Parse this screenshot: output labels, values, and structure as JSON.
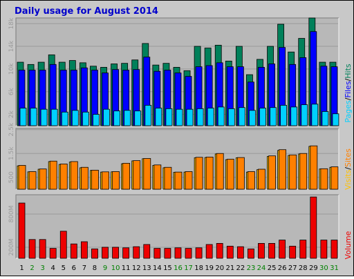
{
  "title": "Daily usage for August 2014",
  "colors": {
    "frame_bg": "#c8c8c8",
    "panel_bg": "#b8b8b8",
    "grid": "#9a9a9a",
    "title": "#0000cc",
    "hits": "#00805a",
    "files": "#0000ff",
    "pages": "#00d0ff",
    "visits": "#ffc000",
    "sites": "#ff8000",
    "volume": "#ee0000",
    "weekday_label": "#000000",
    "weekend_label": "#008000"
  },
  "legends": {
    "top": [
      "Pages",
      "Files",
      "Hits"
    ],
    "mid": [
      "Visits",
      "Sites"
    ],
    "bot": [
      "Volume"
    ]
  },
  "chart_data": [
    {
      "type": "bar",
      "panel": "hits-files-pages",
      "categories": [
        "1",
        "2",
        "3",
        "4",
        "5",
        "6",
        "7",
        "8",
        "9",
        "10",
        "11",
        "12",
        "13",
        "14",
        "15",
        "16",
        "17",
        "18",
        "19",
        "20",
        "21",
        "22",
        "23",
        "24",
        "25",
        "26",
        "27",
        "28",
        "29",
        "30",
        "31"
      ],
      "weekend_days": [
        2,
        3,
        9,
        10,
        16,
        17,
        23,
        24,
        30,
        31
      ],
      "ylim": [
        0,
        19000
      ],
      "yticks": [
        2000,
        6000,
        10000,
        14000,
        18000
      ],
      "ytick_labels": [
        "2k",
        "6k",
        "10k",
        "14k",
        "18k"
      ],
      "series": [
        {
          "name": "Hits",
          "values": [
            11200,
            10800,
            11200,
            12500,
            11200,
            11500,
            11100,
            10500,
            10300,
            10900,
            11000,
            11600,
            14500,
            10700,
            11000,
            10300,
            9700,
            14000,
            13700,
            14200,
            11400,
            14000,
            9000,
            11700,
            14000,
            17900,
            13000,
            15400,
            19000,
            11200,
            11200
          ]
        },
        {
          "name": "Files",
          "values": [
            9800,
            9800,
            9800,
            10800,
            9800,
            9800,
            10200,
            9800,
            9300,
            9900,
            9800,
            9900,
            12100,
            9600,
            9800,
            9300,
            8700,
            10400,
            10600,
            11100,
            10400,
            10400,
            7700,
            10300,
            10900,
            13800,
            10800,
            12000,
            16600,
            10500,
            10400
          ]
        },
        {
          "name": "Pages",
          "values": [
            3100,
            3100,
            2900,
            2900,
            2400,
            2700,
            2400,
            2000,
            2900,
            2600,
            2700,
            2600,
            3600,
            3100,
            3000,
            2900,
            2900,
            3000,
            3100,
            3300,
            3000,
            3200,
            2700,
            3100,
            3200,
            3600,
            3300,
            3700,
            3800,
            2500,
            2100
          ]
        }
      ]
    },
    {
      "type": "bar",
      "panel": "visits-sites",
      "categories": [
        "1",
        "2",
        "3",
        "4",
        "5",
        "6",
        "7",
        "8",
        "9",
        "10",
        "11",
        "12",
        "13",
        "14",
        "15",
        "16",
        "17",
        "18",
        "19",
        "20",
        "21",
        "22",
        "23",
        "24",
        "25",
        "26",
        "27",
        "28",
        "29",
        "30",
        "31"
      ],
      "ylim": [
        0,
        2550
      ],
      "yticks": [
        500,
        1500,
        2500
      ],
      "ytick_labels": [
        "500",
        "1.5k",
        "2.5k"
      ],
      "series": [
        {
          "name": "Visits",
          "values": [
            980,
            730,
            840,
            1160,
            1040,
            1140,
            900,
            790,
            720,
            730,
            1070,
            1190,
            1280,
            1000,
            900,
            710,
            720,
            1320,
            1330,
            1480,
            1240,
            1320,
            720,
            820,
            1380,
            1630,
            1420,
            1480,
            1800,
            850,
            920
          ]
        },
        {
          "name": "Sites",
          "values": [
            1000,
            740,
            850,
            1180,
            1060,
            1160,
            920,
            800,
            730,
            740,
            1090,
            1200,
            1290,
            1020,
            920,
            720,
            740,
            1340,
            1350,
            1500,
            1260,
            1330,
            740,
            840,
            1400,
            1660,
            1440,
            1500,
            1820,
            860,
            940
          ]
        }
      ]
    },
    {
      "type": "bar",
      "panel": "volume",
      "categories": [
        "1",
        "2",
        "3",
        "4",
        "5",
        "6",
        "7",
        "8",
        "9",
        "10",
        "11",
        "12",
        "13",
        "14",
        "15",
        "16",
        "17",
        "18",
        "19",
        "20",
        "21",
        "22",
        "23",
        "24",
        "25",
        "26",
        "27",
        "28",
        "29",
        "30",
        "31"
      ],
      "ylim": [
        0,
        1150
      ],
      "yticks": [
        200,
        800
      ],
      "ytick_labels": [
        "200M",
        "800M"
      ],
      "series": [
        {
          "name": "Volume",
          "values": [
            1000,
            340,
            340,
            180,
            490,
            260,
            300,
            170,
            200,
            200,
            190,
            210,
            250,
            180,
            180,
            190,
            180,
            190,
            250,
            270,
            220,
            210,
            170,
            270,
            270,
            330,
            220,
            330,
            1110,
            330,
            330
          ]
        }
      ]
    }
  ]
}
